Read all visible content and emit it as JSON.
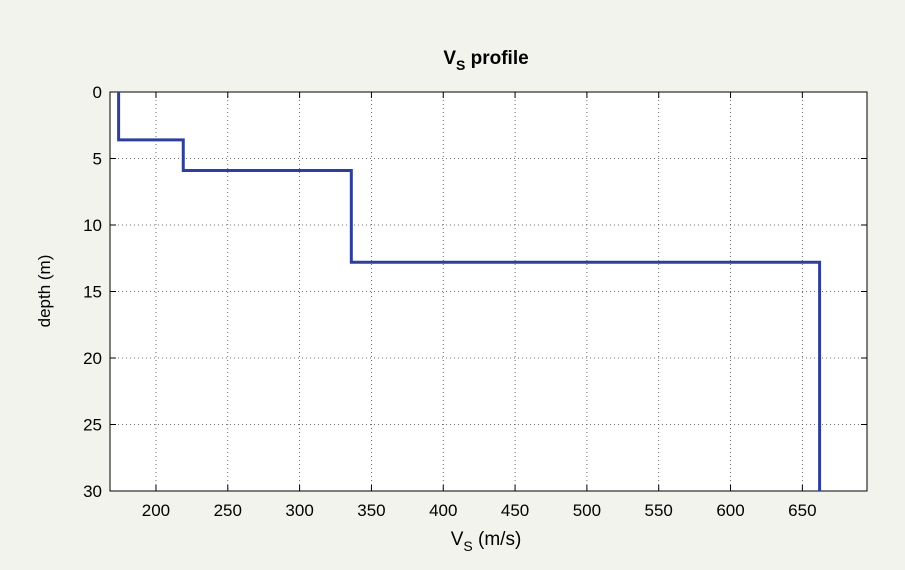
{
  "chart_data": {
    "type": "line",
    "title": {
      "text": "V",
      "subscript": "S",
      "suffix": " profile"
    },
    "xlabel": {
      "text": "V",
      "subscript": "S",
      "suffix": " (m/s)"
    },
    "ylabel": "depth (m)",
    "series": [
      {
        "color": "#2e3f9b",
        "x": [
          174,
          174,
          219,
          219,
          336,
          336,
          662,
          662
        ],
        "values": [
          0,
          3.6,
          3.6,
          5.9,
          5.9,
          12.8,
          12.8,
          30
        ]
      }
    ],
    "xlim": [
      168,
      695
    ],
    "xticks": [
      200,
      250,
      300,
      350,
      400,
      450,
      500,
      550,
      600,
      650
    ],
    "ylim": [
      0,
      30
    ],
    "yticks": [
      0,
      5,
      10,
      15,
      20,
      25,
      30
    ],
    "y_reversed": true,
    "grid": true
  }
}
